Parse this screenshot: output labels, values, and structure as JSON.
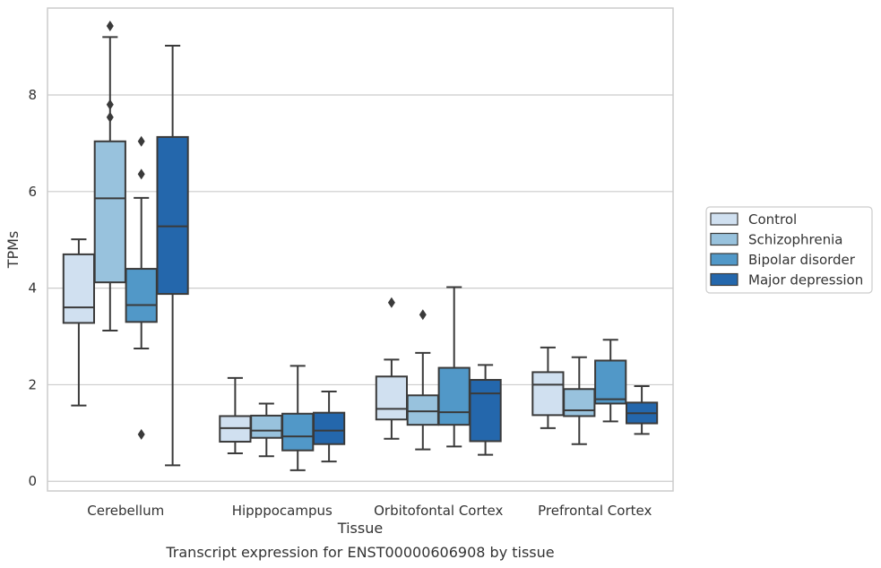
{
  "caption": "Transcript expression for ENST00000606908 by tissue",
  "colors": {
    "Control": "#d0e0f0",
    "Schizophrenia": "#98c2dd",
    "Bipolar disorder": "#5198c8",
    "Major depression": "#2467ac",
    "grid": "#cccccc",
    "frame": "#cccccc",
    "box_edge": "#3a3a3a"
  },
  "chart_data": {
    "type": "box",
    "xlabel": "Tissue",
    "ylabel": "TPMs",
    "ylim": [
      -0.2,
      9.8
    ],
    "yticks": [
      0,
      2,
      4,
      6,
      8
    ],
    "grid": "horizontal",
    "legend_position": "right-outside",
    "categories": [
      "Cerebellum",
      "Hipppocampus",
      "Orbitofontal Cortex",
      "Prefrontal Cortex"
    ],
    "series": [
      {
        "name": "Control",
        "boxes": [
          {
            "whislo": 1.57,
            "q1": 3.28,
            "med": 3.6,
            "q3": 4.7,
            "whishi": 5.01,
            "fliers": []
          },
          {
            "whislo": 0.58,
            "q1": 0.82,
            "med": 1.1,
            "q3": 1.35,
            "whishi": 2.14,
            "fliers": []
          },
          {
            "whislo": 0.88,
            "q1": 1.28,
            "med": 1.5,
            "q3": 2.17,
            "whishi": 2.52,
            "fliers": [
              3.7
            ]
          },
          {
            "whislo": 1.1,
            "q1": 1.37,
            "med": 2.0,
            "q3": 2.26,
            "whishi": 2.77,
            "fliers": []
          }
        ]
      },
      {
        "name": "Schizophrenia",
        "boxes": [
          {
            "whislo": 3.12,
            "q1": 4.12,
            "med": 5.86,
            "q3": 7.04,
            "whishi": 9.2,
            "fliers": [
              7.54,
              7.8,
              9.43
            ]
          },
          {
            "whislo": 0.52,
            "q1": 0.9,
            "med": 1.05,
            "q3": 1.36,
            "whishi": 1.61,
            "fliers": []
          },
          {
            "whislo": 0.66,
            "q1": 1.17,
            "med": 1.45,
            "q3": 1.78,
            "whishi": 2.66,
            "fliers": [
              3.45
            ]
          },
          {
            "whislo": 0.77,
            "q1": 1.35,
            "med": 1.47,
            "q3": 1.91,
            "whishi": 2.57,
            "fliers": []
          }
        ]
      },
      {
        "name": "Bipolar disorder",
        "boxes": [
          {
            "whislo": 2.75,
            "q1": 3.3,
            "med": 3.65,
            "q3": 4.4,
            "whishi": 5.87,
            "fliers": [
              0.97,
              6.36,
              7.04
            ]
          },
          {
            "whislo": 0.23,
            "q1": 0.64,
            "med": 0.93,
            "q3": 1.4,
            "whishi": 2.39,
            "fliers": []
          },
          {
            "whislo": 0.72,
            "q1": 1.17,
            "med": 1.43,
            "q3": 2.35,
            "whishi": 4.02,
            "fliers": []
          },
          {
            "whislo": 1.24,
            "q1": 1.61,
            "med": 1.7,
            "q3": 2.5,
            "whishi": 2.93,
            "fliers": []
          }
        ]
      },
      {
        "name": "Major depression",
        "boxes": [
          {
            "whislo": 0.33,
            "q1": 3.88,
            "med": 5.28,
            "q3": 7.13,
            "whishi": 9.02,
            "fliers": []
          },
          {
            "whislo": 0.41,
            "q1": 0.77,
            "med": 1.05,
            "q3": 1.42,
            "whishi": 1.86,
            "fliers": []
          },
          {
            "whislo": 0.55,
            "q1": 0.83,
            "med": 1.82,
            "q3": 2.1,
            "whishi": 2.41,
            "fliers": []
          },
          {
            "whislo": 0.98,
            "q1": 1.2,
            "med": 1.41,
            "q3": 1.63,
            "whishi": 1.97,
            "fliers": []
          }
        ]
      }
    ]
  }
}
